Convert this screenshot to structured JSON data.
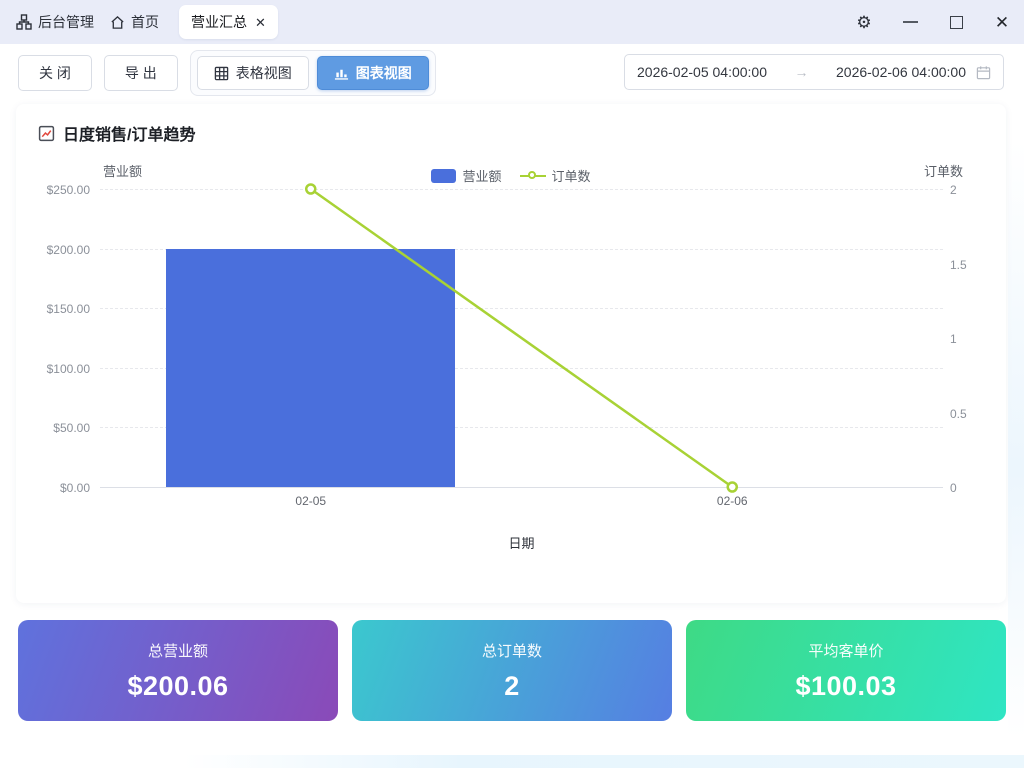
{
  "topbar": {
    "app_label": "后台管理",
    "home_label": "首页",
    "tab_label": "营业汇总",
    "tab_close": "✕",
    "minimize": "—",
    "close": "✕",
    "gear": "⚙"
  },
  "toolbar": {
    "close_label": "关 闭",
    "export_label": "导 出",
    "table_view_label": "表格视图",
    "chart_view_label": "图表视图",
    "active_view": "图表视图",
    "date_start": "2026-02-05 04:00:00",
    "date_end": "2026-02-06 04:00:00",
    "date_arrow": "→"
  },
  "panel": {
    "title": "日度销售/订单趋势"
  },
  "chart_data": {
    "type": "bar+line dual-axis",
    "categories": [
      "02-05",
      "02-06"
    ],
    "series": [
      {
        "name": "营业额",
        "type": "bar",
        "axis": "left",
        "values": [
          200,
          0
        ],
        "color": "#4a6fdc"
      },
      {
        "name": "订单数",
        "type": "line",
        "axis": "right",
        "values": [
          2,
          0
        ],
        "color": "#a8d235"
      }
    ],
    "left_axis": {
      "title": "营业额",
      "min": 0,
      "max": 250,
      "tick_labels": [
        "$250.00",
        "$200.00",
        "$150.00",
        "$100.00",
        "$50.00",
        "$0.00"
      ]
    },
    "right_axis": {
      "title": "订单数",
      "min": 0,
      "max": 2,
      "tick_labels": [
        "2",
        "1.5",
        "1",
        "0.5",
        "0"
      ]
    },
    "xlabel": "日期",
    "grid": "horizontal dashed",
    "legend_position": "top-center"
  },
  "summary_cards": [
    {
      "label": "总营业额",
      "value": "$200.06",
      "gradient_from": "#5f72dd",
      "gradient_to": "#8a4ab8"
    },
    {
      "label": "总订单数",
      "value": "2",
      "gradient_from": "#3bc8ce",
      "gradient_to": "#567ee2"
    },
    {
      "label": "平均客单价",
      "value": "$100.03",
      "gradient_from": "#3eda85",
      "gradient_to": "#2fe5c4"
    }
  ],
  "colors": {
    "topbar_bg": "#e9ecf8",
    "active_button_bg": "#5f9be2",
    "bar_series": "#4a6fdc",
    "line_series": "#a8d235",
    "grid_dash": "#e7e8ec",
    "axis_text": "#8b9099"
  }
}
